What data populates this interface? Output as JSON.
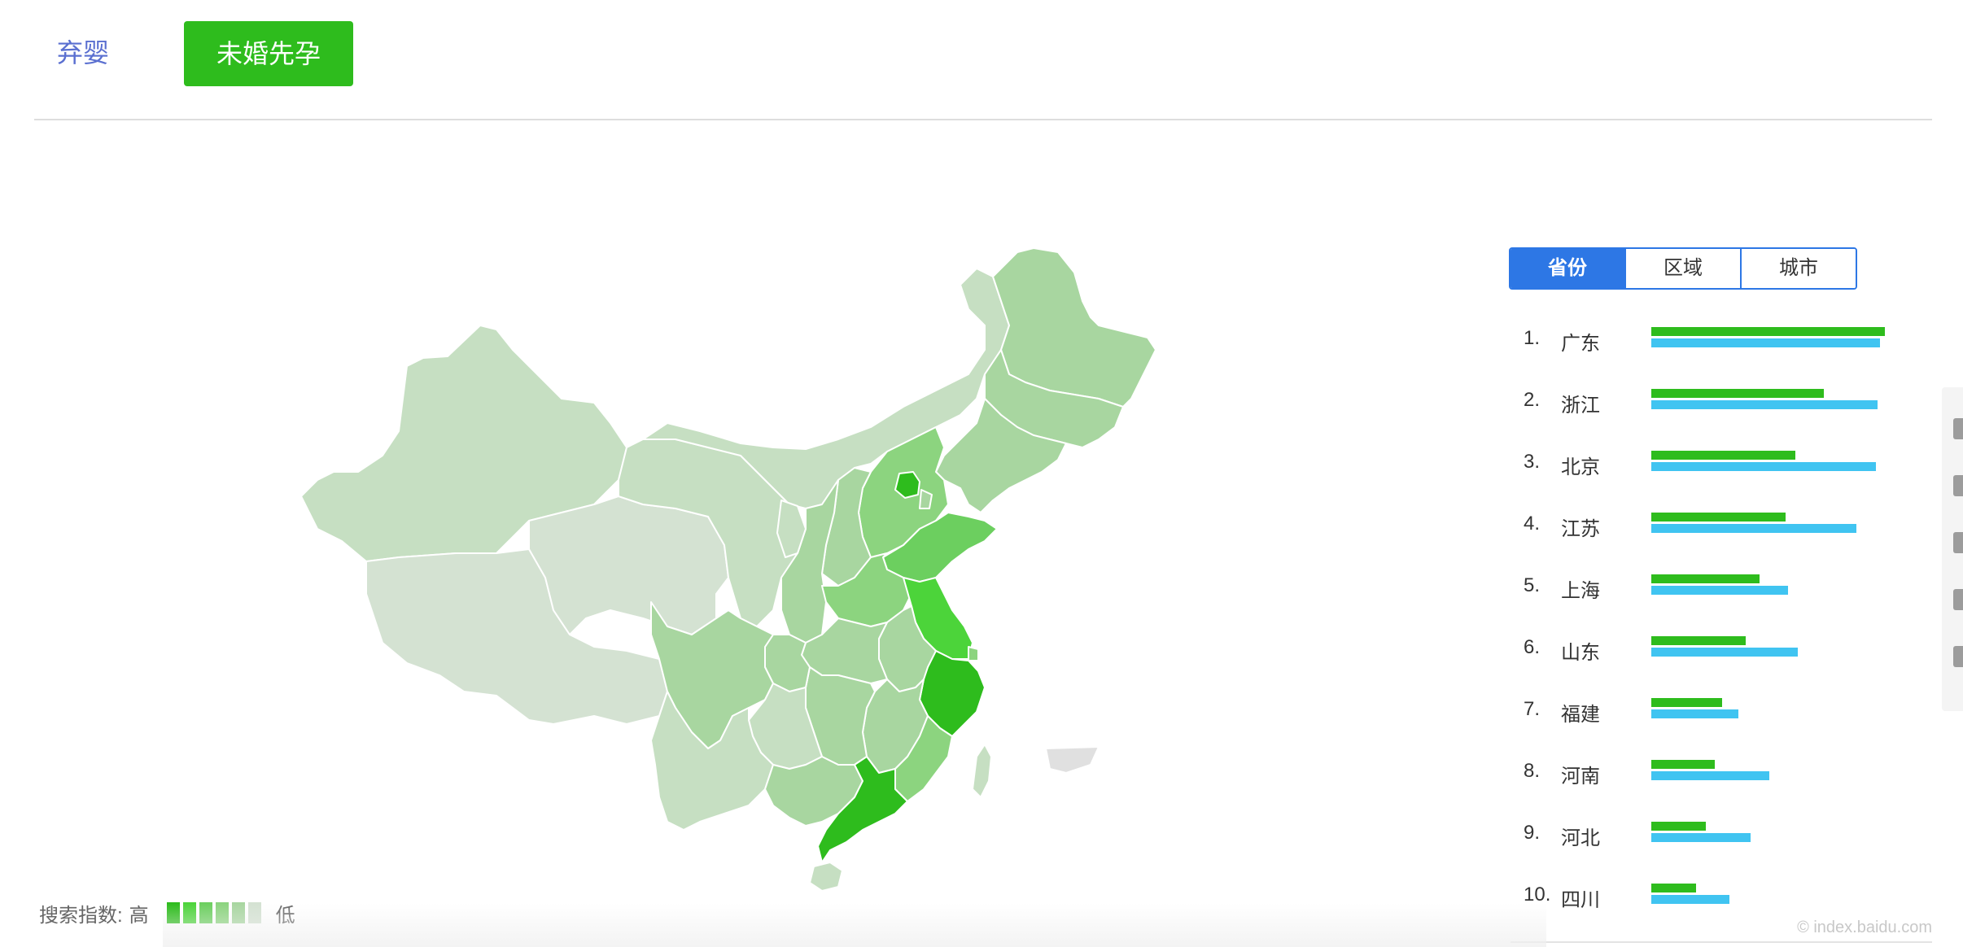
{
  "top_tabs": {
    "inactive_label": "弃婴",
    "active_label": "未婚先孕"
  },
  "colors": {
    "level1": "#2ebc1d",
    "level2": "#4cd43a",
    "level3": "#6ccf5f",
    "level4": "#8cd47f",
    "level5": "#a8d6a0",
    "level6": "#c6dfc2",
    "level7": "#d4e2d2",
    "taiwan_gray": "#e0e0e0",
    "accent_blue": "#2d77e5",
    "bar_green": "#2ebc1d",
    "bar_blue": "#40c4f1"
  },
  "legend": {
    "prefix": "搜索指数:",
    "high": "高",
    "low": "低",
    "swatches": [
      "#2ebc1d",
      "#4cd43a",
      "#6ccf5f",
      "#8cd47f",
      "#a8d6a0",
      "#d4e2d2"
    ]
  },
  "segmented": {
    "options": [
      "省份",
      "区域",
      "城市"
    ],
    "selected": "省份"
  },
  "ranking": [
    {
      "rank": "1.",
      "name": "广东",
      "green": 0.99,
      "blue": 0.97
    },
    {
      "rank": "2.",
      "name": "浙江",
      "green": 0.73,
      "blue": 0.96
    },
    {
      "rank": "3.",
      "name": "北京",
      "green": 0.61,
      "blue": 0.95
    },
    {
      "rank": "4.",
      "name": "江苏",
      "green": 0.57,
      "blue": 0.87
    },
    {
      "rank": "5.",
      "name": "上海",
      "green": 0.46,
      "blue": 0.58
    },
    {
      "rank": "6.",
      "name": "山东",
      "green": 0.4,
      "blue": 0.62
    },
    {
      "rank": "7.",
      "name": "福建",
      "green": 0.3,
      "blue": 0.37
    },
    {
      "rank": "8.",
      "name": "河南",
      "green": 0.27,
      "blue": 0.5
    },
    {
      "rank": "9.",
      "name": "河北",
      "green": 0.23,
      "blue": 0.42
    },
    {
      "rank": "10.",
      "name": "四川",
      "green": 0.19,
      "blue": 0.33
    }
  ],
  "watermark": "© index.baidu.com"
}
